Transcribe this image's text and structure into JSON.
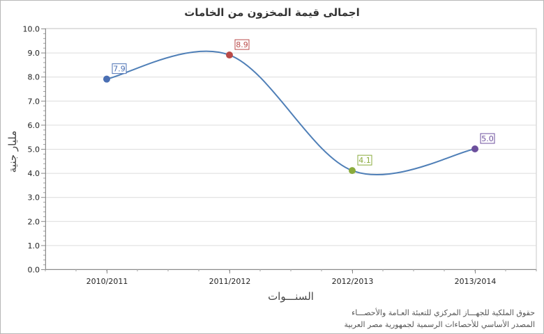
{
  "chart_data": {
    "type": "line",
    "title": "اجمالى قيمة المخزون من الخامات",
    "xlabel": "السنـــوات",
    "ylabel": "مليار جنية",
    "categories": [
      "2010/2011",
      "2011/2012",
      "2012/2013",
      "2013/2014"
    ],
    "values": [
      7.9,
      8.9,
      4.1,
      5.0
    ],
    "data_labels": [
      "7.9",
      "8.9",
      "4.1",
      "5.0"
    ],
    "point_colors": [
      "#4a6fb3",
      "#b94a48",
      "#8aab3c",
      "#6c4f9c"
    ],
    "line_color": "#4f7fb7",
    "ylim": [
      0,
      10
    ],
    "yticks": [
      "0.0",
      "1.0",
      "2.0",
      "3.0",
      "4.0",
      "5.0",
      "6.0",
      "7.0",
      "8.0",
      "9.0",
      "10.0"
    ],
    "grid": true,
    "smooth": true,
    "legend": "none"
  },
  "footer": {
    "line1": "حقوق الملكية للجهـــاز المركزي للتعبئة العـامة والأحصـــاء",
    "line2": "المصدر الأساسي للأحصاءات الرسمية لجمهورية مصر العربية"
  }
}
